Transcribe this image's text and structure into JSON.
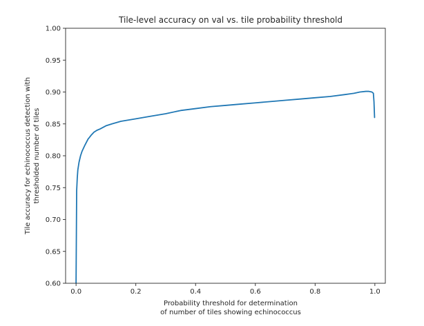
{
  "chart_data": {
    "type": "line",
    "title": "Tile-level accuracy on val vs. tile probability threshold",
    "xlabel": [
      "Probability threshold for determination",
      "of number of tiles showing echinococcus"
    ],
    "ylabel": [
      "Tile accuracy for echinococcus detection with",
      "thresholded number of tiles"
    ],
    "xlim": [
      -0.035,
      1.035
    ],
    "ylim": [
      0.6,
      1.0
    ],
    "x_ticks": [
      0.0,
      0.2,
      0.4,
      0.6,
      0.8,
      1.0
    ],
    "x_tick_labels": [
      "0.0",
      "0.2",
      "0.4",
      "0.6",
      "0.8",
      "1.0"
    ],
    "y_ticks": [
      0.6,
      0.65,
      0.7,
      0.75,
      0.8,
      0.85,
      0.9,
      0.95,
      1.0
    ],
    "y_tick_labels": [
      "0.60",
      "0.65",
      "0.70",
      "0.75",
      "0.80",
      "0.85",
      "0.90",
      "0.95",
      "1.00"
    ],
    "grid": false,
    "series": [
      {
        "color": "#1f77b4",
        "x": [
          0.0,
          0.002,
          0.004,
          0.006,
          0.01,
          0.015,
          0.02,
          0.03,
          0.04,
          0.05,
          0.06,
          0.07,
          0.08,
          0.1,
          0.12,
          0.15,
          0.2,
          0.25,
          0.3,
          0.35,
          0.4,
          0.45,
          0.5,
          0.55,
          0.6,
          0.65,
          0.7,
          0.75,
          0.8,
          0.85,
          0.9,
          0.93,
          0.95,
          0.97,
          0.98,
          0.99,
          0.995,
          0.997,
          0.999
        ],
        "y": [
          0.6,
          0.745,
          0.765,
          0.778,
          0.79,
          0.8,
          0.807,
          0.817,
          0.826,
          0.832,
          0.837,
          0.84,
          0.842,
          0.847,
          0.85,
          0.854,
          0.858,
          0.862,
          0.866,
          0.871,
          0.874,
          0.877,
          0.879,
          0.881,
          0.883,
          0.885,
          0.887,
          0.889,
          0.891,
          0.893,
          0.896,
          0.898,
          0.9,
          0.901,
          0.901,
          0.9,
          0.898,
          0.885,
          0.86
        ]
      }
    ]
  },
  "colors": {
    "line": "#1f77b4",
    "axes": "#262626"
  }
}
